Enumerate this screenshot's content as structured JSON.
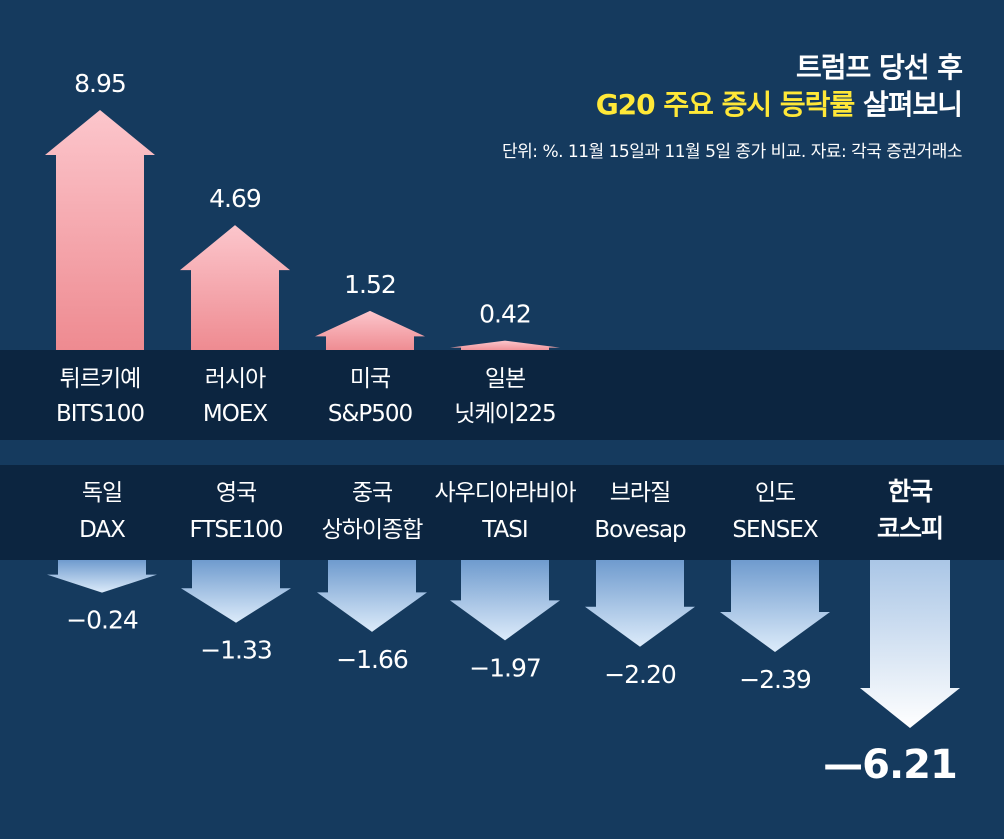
{
  "title": {
    "line1": "트럼프 당선 후",
    "line2_highlight": "G20 주요 증시 등락률",
    "line2_rest": " 살펴보니"
  },
  "note": "단위: %. 11월 15일과 11월 5일 종가 비교. 자료: 각국 증권거래소",
  "colors": {
    "background": "#153a5e",
    "band": "#0c2540",
    "highlight_text": "#ffe838",
    "up_top": "#fcc6cc",
    "up_bottom": "#ee8a90",
    "down_top": "#6f9bce",
    "down_bottom": "#dcebfa",
    "korea_top": "#aac6e6",
    "korea_bottom": "#ffffff"
  },
  "chart_data": {
    "type": "bar",
    "unit": "%",
    "series": [
      {
        "values": [
          8.95,
          4.69,
          1.52,
          0.42,
          -0.24,
          -1.33,
          -1.66,
          -1.97,
          -2.2,
          -2.39,
          -6.21
        ]
      }
    ],
    "bars": [
      {
        "country": "튀르키예",
        "index": "BITS100",
        "value": 8.95,
        "label": "8.95"
      },
      {
        "country": "러시아",
        "index": "MOEX",
        "value": 4.69,
        "label": "4.69"
      },
      {
        "country": "미국",
        "index": "S&P500",
        "value": 1.52,
        "label": "1.52"
      },
      {
        "country": "일본",
        "index": "닛케이225",
        "value": 0.42,
        "label": "0.42"
      },
      {
        "country": "독일",
        "index": "DAX",
        "value": -0.24,
        "label": "−0.24"
      },
      {
        "country": "영국",
        "index": "FTSE100",
        "value": -1.33,
        "label": "−1.33"
      },
      {
        "country": "중국",
        "index": "상하이종합",
        "value": -1.66,
        "label": "−1.66"
      },
      {
        "country": "사우디아라비아",
        "index": "TASI",
        "value": -1.97,
        "label": "−1.97"
      },
      {
        "country": "브라질",
        "index": "Bovesap",
        "value": -2.2,
        "label": "−2.20"
      },
      {
        "country": "인도",
        "index": "SENSEX",
        "value": -2.39,
        "label": "−2.39"
      },
      {
        "country": "한국",
        "index": "코스피",
        "value": -6.21,
        "label": "—6.21",
        "highlight": true
      }
    ]
  }
}
